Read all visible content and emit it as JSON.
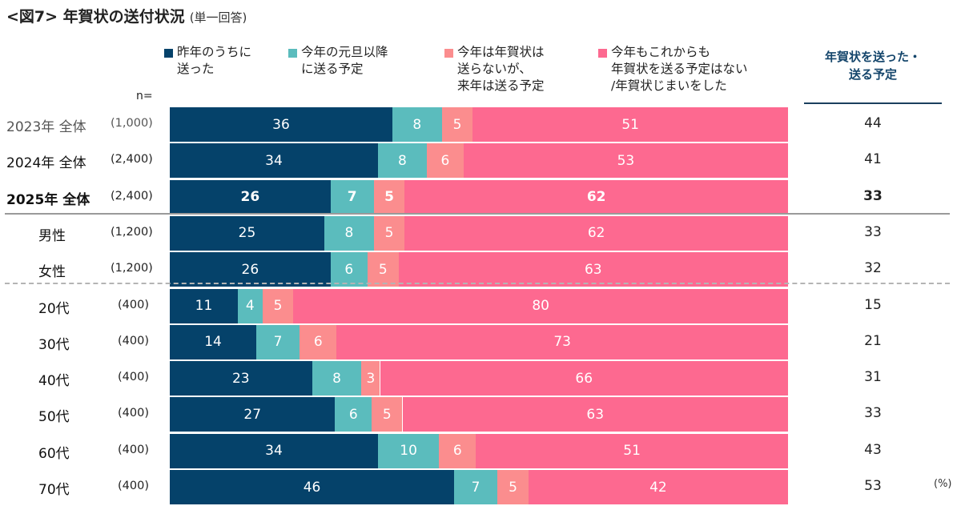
{
  "title": {
    "main": "<図7> 年賀状の送付状況",
    "sub": "(単一回答)"
  },
  "n_label": "n=",
  "unit_label": "(%)",
  "colors": {
    "sent_last_year": "#05426a",
    "after_new_year": "#5bbcbd",
    "next_year": "#fb8d8e",
    "none": "#fd6990",
    "header_text": "#14456b"
  },
  "right_column": {
    "header": "年賀状を送った・\n送る予定"
  },
  "chart_data": {
    "type": "bar",
    "orientation": "horizontal",
    "stacked": true,
    "title": "<図7> 年賀状の送付状況 (単一回答)",
    "xlabel": "",
    "ylabel": "",
    "unit": "%",
    "xlim": [
      0,
      100
    ],
    "legend_position": "top",
    "categories": [
      "2023年 全体",
      "2024年 全体",
      "2025年 全体",
      "男性",
      "女性",
      "20代",
      "30代",
      "40代",
      "50代",
      "60代",
      "70代"
    ],
    "n": [
      "(1,000)",
      "(2,400)",
      "(2,400)",
      "(1,200)",
      "(1,200)",
      "(400)",
      "(400)",
      "(400)",
      "(400)",
      "(400)",
      "(400)"
    ],
    "series": [
      {
        "name": "昨年のうちに\n送った",
        "values": [
          36,
          34,
          26,
          25,
          26,
          11,
          14,
          23,
          27,
          34,
          46
        ]
      },
      {
        "name": "今年の元旦以降\nに送る予定",
        "values": [
          8,
          8,
          7,
          8,
          6,
          4,
          7,
          8,
          6,
          10,
          7
        ]
      },
      {
        "name": "今年は年賀状は\n送らないが、\n来年は送る予定",
        "values": [
          5,
          6,
          5,
          5,
          5,
          5,
          6,
          3,
          5,
          6,
          5
        ]
      },
      {
        "name": "今年もこれからも\n年賀状を送る予定はない\n/年賀状じまいをした",
        "values": [
          51,
          53,
          62,
          62,
          63,
          80,
          73,
          66,
          63,
          51,
          42
        ]
      }
    ],
    "totals_label": "年賀状を送った・送る予定",
    "totals": [
      44,
      41,
      33,
      33,
      32,
      15,
      21,
      31,
      33,
      43,
      53
    ]
  }
}
